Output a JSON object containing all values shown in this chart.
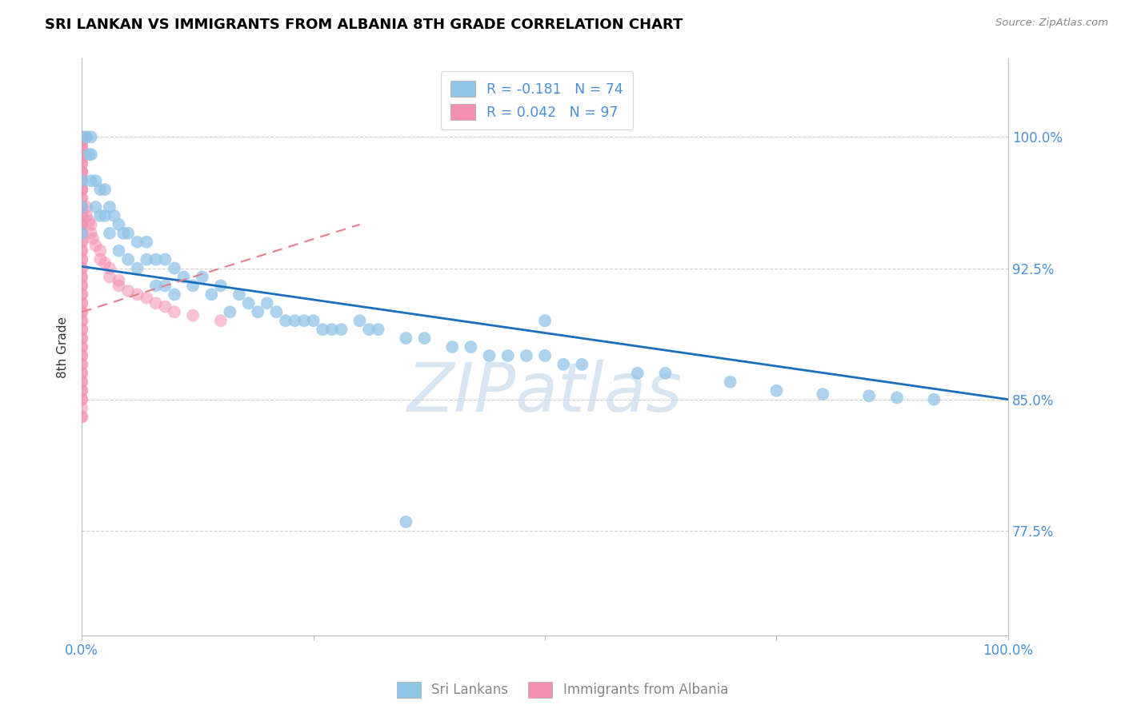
{
  "title": "SRI LANKAN VS IMMIGRANTS FROM ALBANIA 8TH GRADE CORRELATION CHART",
  "source": "Source: ZipAtlas.com",
  "ylabel": "8th Grade",
  "ytick_labels": [
    "77.5%",
    "85.0%",
    "92.5%",
    "100.0%"
  ],
  "ytick_values": [
    0.775,
    0.85,
    0.925,
    1.0
  ],
  "xmin": 0.0,
  "xmax": 1.0,
  "ymin": 0.715,
  "ymax": 1.045,
  "blue_color": "#90C4E8",
  "pink_color": "#F48FB1",
  "blue_line_color": "#1A6FBD",
  "pink_line_color": "#E87C8A",
  "legend_blue_r": "R = -0.181",
  "legend_blue_n": "N = 74",
  "legend_pink_r": "R = 0.042",
  "legend_pink_n": "N = 97",
  "watermark": "ZIPatlas",
  "blue_scatter_x": [
    0.0,
    0.0,
    0.0,
    0.005,
    0.005,
    0.008,
    0.01,
    0.01,
    0.01,
    0.015,
    0.015,
    0.02,
    0.02,
    0.025,
    0.025,
    0.03,
    0.03,
    0.035,
    0.04,
    0.04,
    0.045,
    0.05,
    0.05,
    0.06,
    0.06,
    0.07,
    0.07,
    0.08,
    0.08,
    0.09,
    0.09,
    0.1,
    0.1,
    0.11,
    0.12,
    0.13,
    0.14,
    0.15,
    0.16,
    0.17,
    0.18,
    0.19,
    0.2,
    0.21,
    0.22,
    0.23,
    0.24,
    0.25,
    0.26,
    0.27,
    0.28,
    0.3,
    0.31,
    0.32,
    0.35,
    0.37,
    0.4,
    0.42,
    0.44,
    0.46,
    0.48,
    0.5,
    0.52,
    0.54,
    0.6,
    0.63,
    0.7,
    0.75,
    0.8,
    0.85,
    0.88,
    0.92,
    0.5,
    0.35
  ],
  "blue_scatter_y": [
    0.975,
    0.96,
    0.945,
    1.0,
    1.0,
    0.99,
    1.0,
    0.99,
    0.975,
    0.975,
    0.96,
    0.97,
    0.955,
    0.97,
    0.955,
    0.96,
    0.945,
    0.955,
    0.95,
    0.935,
    0.945,
    0.945,
    0.93,
    0.94,
    0.925,
    0.94,
    0.93,
    0.93,
    0.915,
    0.93,
    0.915,
    0.925,
    0.91,
    0.92,
    0.915,
    0.92,
    0.91,
    0.915,
    0.9,
    0.91,
    0.905,
    0.9,
    0.905,
    0.9,
    0.895,
    0.895,
    0.895,
    0.895,
    0.89,
    0.89,
    0.89,
    0.895,
    0.89,
    0.89,
    0.885,
    0.885,
    0.88,
    0.88,
    0.875,
    0.875,
    0.875,
    0.875,
    0.87,
    0.87,
    0.865,
    0.865,
    0.86,
    0.855,
    0.853,
    0.852,
    0.851,
    0.85,
    0.895,
    0.78
  ],
  "pink_scatter_x": [
    0.0,
    0.0,
    0.0,
    0.0,
    0.0,
    0.0,
    0.0,
    0.0,
    0.0,
    0.0,
    0.0,
    0.0,
    0.0,
    0.0,
    0.0,
    0.0,
    0.0,
    0.0,
    0.0,
    0.0,
    0.0,
    0.0,
    0.0,
    0.0,
    0.0,
    0.0,
    0.0,
    0.0,
    0.0,
    0.0,
    0.0,
    0.0,
    0.0,
    0.0,
    0.0,
    0.0,
    0.0,
    0.0,
    0.0,
    0.0,
    0.0,
    0.0,
    0.0,
    0.0,
    0.0,
    0.0,
    0.0,
    0.0,
    0.0,
    0.0,
    0.0,
    0.0,
    0.0,
    0.0,
    0.0,
    0.0,
    0.0,
    0.0,
    0.0,
    0.0,
    0.0,
    0.0,
    0.0,
    0.0,
    0.0,
    0.0,
    0.0,
    0.0,
    0.0,
    0.0,
    0.0,
    0.0,
    0.0,
    0.0,
    0.0,
    0.005,
    0.005,
    0.008,
    0.01,
    0.01,
    0.012,
    0.015,
    0.02,
    0.02,
    0.025,
    0.03,
    0.03,
    0.04,
    0.04,
    0.05,
    0.06,
    0.07,
    0.08,
    0.09,
    0.1,
    0.12,
    0.15
  ],
  "pink_scatter_y": [
    1.0,
    1.0,
    1.0,
    0.995,
    0.99,
    0.985,
    0.98,
    0.975,
    0.97,
    0.965,
    0.96,
    0.955,
    0.95,
    0.945,
    0.94,
    0.935,
    0.93,
    0.925,
    0.92,
    0.915,
    0.91,
    0.905,
    0.9,
    0.895,
    0.89,
    0.885,
    0.88,
    0.875,
    0.87,
    0.865,
    0.86,
    0.855,
    0.85,
    0.845,
    0.84,
    0.998,
    0.995,
    0.993,
    0.99,
    0.988,
    0.985,
    0.98,
    0.975,
    0.97,
    0.965,
    0.96,
    0.955,
    0.95,
    0.945,
    0.94,
    0.935,
    0.93,
    0.925,
    0.92,
    0.915,
    0.91,
    0.905,
    0.9,
    0.895,
    0.89,
    0.885,
    0.88,
    0.875,
    0.87,
    0.865,
    0.86,
    0.855,
    0.85,
    0.998,
    0.99,
    0.98,
    0.97,
    0.96,
    0.95,
    0.84,
    0.96,
    0.955,
    0.952,
    0.95,
    0.945,
    0.942,
    0.938,
    0.935,
    0.93,
    0.928,
    0.925,
    0.92,
    0.918,
    0.915,
    0.912,
    0.91,
    0.908,
    0.905,
    0.903,
    0.9,
    0.898,
    0.895
  ],
  "blue_line_x": [
    0.0,
    1.0
  ],
  "blue_line_y": [
    0.926,
    0.85
  ],
  "pink_line_x": [
    0.0,
    0.3
  ],
  "pink_line_y": [
    0.9,
    0.95
  ],
  "title_fontsize": 13,
  "tick_color": "#4A90D9",
  "grid_color": "#CCCCCC",
  "watermark_color": "#C8DCEE"
}
